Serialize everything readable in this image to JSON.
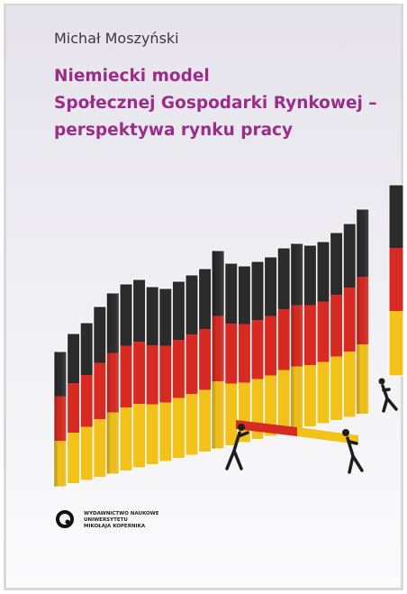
{
  "author": "Michał Moszyński",
  "title": {
    "lines": [
      "Niemiecki model",
      "Społecznej Gospodarki Rynkowej –",
      "perspektywa rynku pracy"
    ]
  },
  "publisher": {
    "lines": [
      "WYDAWNICTWO NAUKOWE",
      "UNIWERSYTETU",
      "MIKOŁAJA KOPERNIKA"
    ]
  }
}
